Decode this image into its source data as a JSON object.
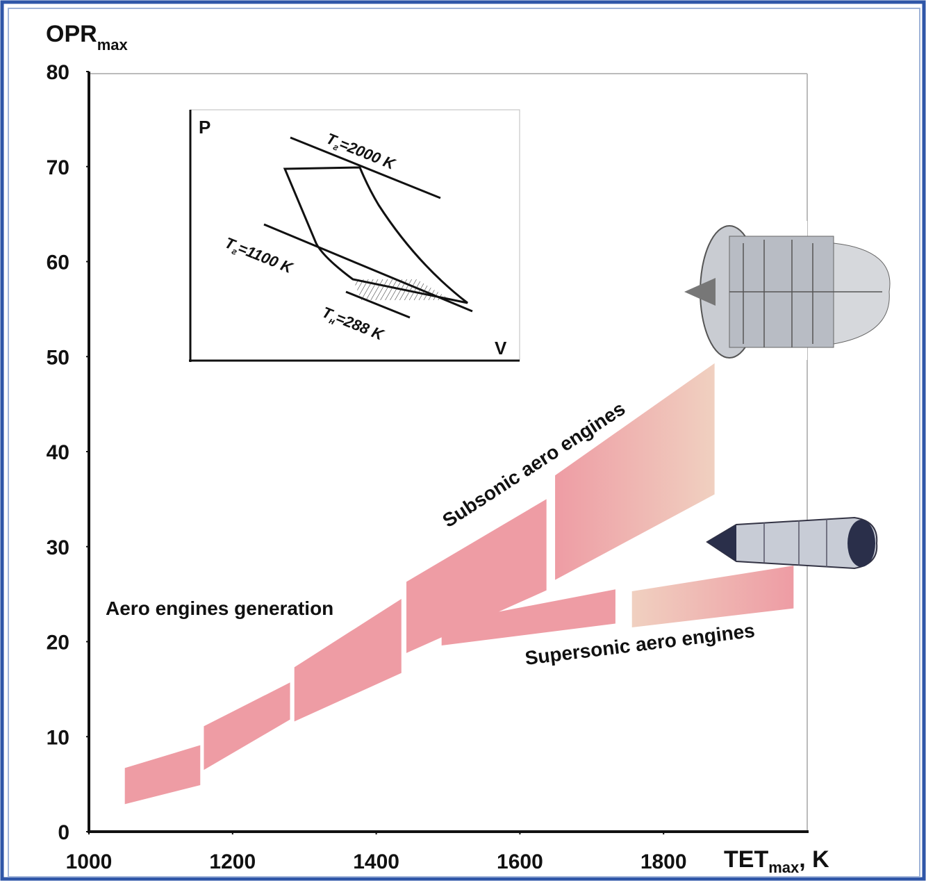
{
  "chart_data": {
    "type": "band",
    "y_label": {
      "main": "OPR",
      "sub": "max"
    },
    "x_label": {
      "main": "TET",
      "sub": "max",
      "suffix": ", K"
    },
    "xlim": [
      1000,
      2000
    ],
    "xticks": [
      1000,
      1200,
      1400,
      1600,
      1800
    ],
    "ylim": [
      0,
      80
    ],
    "yticks": [
      0,
      10,
      20,
      30,
      40,
      50,
      60,
      70,
      80
    ],
    "grid": false,
    "series": [
      {
        "x": [
          1050,
          1155
        ],
        "lower": [
          2.9,
          4.9
        ],
        "upper": [
          6.7,
          9.1
        ],
        "color": "#ee9ca4"
      },
      {
        "x": [
          1160,
          1280
        ],
        "lower": [
          6.5,
          11.8
        ],
        "upper": [
          11.1,
          15.7
        ],
        "color": "#ee9ca4"
      },
      {
        "x": [
          1286,
          1435
        ],
        "lower": [
          11.6,
          16.7
        ],
        "upper": [
          17.3,
          24.5
        ],
        "color": "#ee9ca4"
      },
      {
        "x": [
          1442,
          1637
        ],
        "lower": [
          18.8,
          25.4
        ],
        "upper": [
          26.3,
          35.0
        ],
        "color": "#ee9ca4"
      },
      {
        "x": [
          1491,
          1733
        ],
        "lower": [
          19.6,
          21.9
        ],
        "upper": [
          22.0,
          25.5
        ],
        "color": "#ee9ca4"
      },
      {
        "x": [
          1649,
          1871
        ],
        "lower": [
          26.5,
          35.5
        ],
        "upper": [
          37.5,
          49.3
        ],
        "color": "#ee9ca4",
        "gradient_to": "#f0d0c0"
      },
      {
        "x": [
          1756,
          1981
        ],
        "lower": [
          21.5,
          23.5
        ],
        "upper": [
          25.3,
          28.0
        ],
        "color": "#f0d0c0",
        "gradient_to": "#ee9ca4"
      }
    ],
    "annotations": [
      "Aero engines generation",
      "Subsonic aero engines",
      "Supersonic aero engines"
    ],
    "inset": {
      "y_axis": "P",
      "x_axis": "V",
      "labels": [
        {
          "symbol": "T",
          "sub": "г",
          "rest": "=2000 K"
        },
        {
          "symbol": "T",
          "sub": "г",
          "rest": "=1100 K"
        },
        {
          "symbol": "T",
          "sub": "н",
          "rest": "=288 K"
        }
      ]
    }
  }
}
